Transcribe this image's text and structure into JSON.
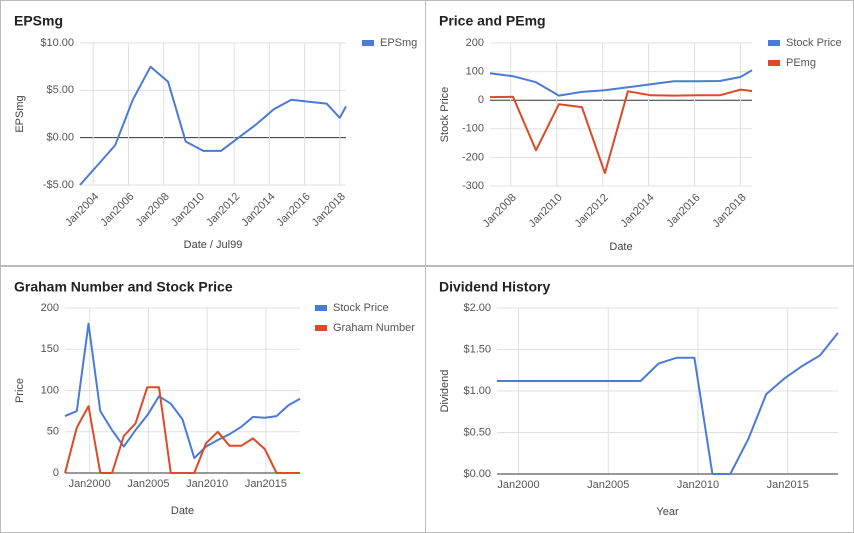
{
  "chart_data": [
    {
      "type": "line",
      "title": "EPSmg",
      "ylabel": "EPSmg",
      "xlabel": "Date / Jul99",
      "x": [
        2003.25,
        2004.25,
        2005.25,
        2006.25,
        2007.25,
        2008.25,
        2009.25,
        2010.25,
        2011.25,
        2012.25,
        2013.25,
        2014.25,
        2015.25,
        2016.25,
        2017.25,
        2018.0,
        2018.35
      ],
      "series": [
        {
          "name": "EPSmg",
          "color": "#4a7bd6",
          "values": [
            -5,
            -2.9,
            -0.8,
            4.0,
            7.5,
            5.9,
            -0.4,
            -1.4,
            -1.4,
            0.0,
            1.4,
            3.0,
            4.0,
            3.8,
            3.6,
            2.1,
            3.3
          ]
        }
      ],
      "xlim": [
        2003.25,
        2018.35
      ],
      "xticks": [
        {
          "value": 2004,
          "label": "Jan2004"
        },
        {
          "value": 2006,
          "label": "Jan2006"
        },
        {
          "value": 2008,
          "label": "Jan2008"
        },
        {
          "value": 2010,
          "label": "Jan2010"
        },
        {
          "value": 2012,
          "label": "Jan2012"
        },
        {
          "value": 2014,
          "label": "Jan2014"
        },
        {
          "value": 2016,
          "label": "Jan2016"
        },
        {
          "value": 2018,
          "label": "Jan2018"
        }
      ],
      "ylim": [
        -5,
        10
      ],
      "yticks": [
        {
          "value": 10,
          "label": "$10.00"
        },
        {
          "value": 5,
          "label": "$5.00"
        },
        {
          "value": 0,
          "label": "$0.00"
        },
        {
          "value": -5,
          "label": "-$5.00"
        }
      ],
      "grid": true,
      "legend": "right"
    },
    {
      "type": "line",
      "title": "Price and PEmg",
      "ylabel": "Stock Price",
      "xlabel": "Date",
      "x": [
        2007.1,
        2008.1,
        2009.1,
        2010.1,
        2011.1,
        2012.1,
        2013.1,
        2014.1,
        2015.1,
        2016.1,
        2017.1,
        2018.0,
        2018.5
      ],
      "series": [
        {
          "name": "Stock Price",
          "color": "#4a7bd6",
          "values": [
            94,
            84,
            63,
            16,
            29,
            35,
            45,
            56,
            66,
            66,
            67,
            81,
            105
          ]
        },
        {
          "name": "PEmg",
          "color": "#dc4a26",
          "values": [
            11,
            12,
            -175,
            -14,
            -24,
            -255,
            31,
            17,
            16,
            17,
            17,
            37,
            32
          ]
        }
      ],
      "xlim": [
        2007.1,
        2018.5
      ],
      "xticks": [
        {
          "value": 2008,
          "label": "Jan2008"
        },
        {
          "value": 2010,
          "label": "Jan2010"
        },
        {
          "value": 2012,
          "label": "Jan2012"
        },
        {
          "value": 2014,
          "label": "Jan2014"
        },
        {
          "value": 2016,
          "label": "Jan2016"
        },
        {
          "value": 2018,
          "label": "Jan2018"
        }
      ],
      "ylim": [
        -300,
        200
      ],
      "yticks": [
        200,
        100,
        0,
        -100,
        -200,
        -300
      ],
      "grid": true,
      "legend": "right"
    },
    {
      "type": "line",
      "title": "Graham Number and Stock Price",
      "ylabel": "Price",
      "xlabel": "Date",
      "x": [
        1997.9,
        1998.9,
        1999.9,
        2000.9,
        2001.9,
        2002.9,
        2003.9,
        2004.9,
        2005.9,
        2006.9,
        2007.9,
        2008.9,
        2009.9,
        2010.9,
        2011.9,
        2012.9,
        2013.9,
        2014.9,
        2015.9,
        2016.9,
        2017.9
      ],
      "series": [
        {
          "name": "Stock Price",
          "color": "#4a7bd6",
          "values": [
            69,
            75,
            181,
            75,
            52,
            32,
            52,
            70,
            93,
            84,
            65,
            18,
            32,
            40,
            47,
            56,
            68,
            67,
            69,
            82,
            90
          ]
        },
        {
          "name": "Graham Number",
          "color": "#dc4a26",
          "values": [
            0,
            55,
            81,
            0,
            0,
            45,
            60,
            104,
            104,
            0,
            0,
            0,
            36,
            50,
            33,
            33,
            42,
            29,
            0,
            0,
            0
          ]
        }
      ],
      "xlim": [
        1997.9,
        2017.9
      ],
      "xticks": [
        {
          "value": 2000,
          "label": "Jan2000"
        },
        {
          "value": 2005,
          "label": "Jan2005"
        },
        {
          "value": 2010,
          "label": "Jan2010"
        },
        {
          "value": 2015,
          "label": "Jan2015"
        }
      ],
      "ylim": [
        0,
        200
      ],
      "yticks": [
        200,
        150,
        100,
        50,
        0
      ],
      "grid": true,
      "legend": "right"
    },
    {
      "type": "line",
      "title": "Dividend History",
      "ylabel": "Dividend",
      "xlabel": "Year",
      "x": [
        1998.8,
        1999.8,
        2000.8,
        2001.8,
        2002.8,
        2003.8,
        2004.8,
        2005.8,
        2006.8,
        2007.8,
        2008.8,
        2009.8,
        2010.8,
        2011.8,
        2012.8,
        2013.8,
        2014.8,
        2015.8,
        2016.8,
        2017.8
      ],
      "series": [
        {
          "color": "#4a7bd6",
          "values": [
            1.12,
            1.12,
            1.12,
            1.12,
            1.12,
            1.12,
            1.12,
            1.12,
            1.12,
            1.33,
            1.4,
            1.4,
            0,
            0,
            0.42,
            0.96,
            1.15,
            1.3,
            1.43,
            1.7
          ]
        }
      ],
      "xlim": [
        1998.8,
        2017.8
      ],
      "xticks": [
        {
          "value": 2000,
          "label": "Jan2000"
        },
        {
          "value": 2005,
          "label": "Jan2005"
        },
        {
          "value": 2010,
          "label": "Jan2010"
        },
        {
          "value": 2015,
          "label": "Jan2015"
        }
      ],
      "ylim": [
        0,
        2
      ],
      "yticks": [
        {
          "value": 2,
          "label": "$2.00"
        },
        {
          "value": 1.5,
          "label": "$1.50"
        },
        {
          "value": 1,
          "label": "$1.00"
        },
        {
          "value": 0.5,
          "label": "$0.50"
        },
        {
          "value": 0,
          "label": "$0.00"
        }
      ],
      "grid": true
    }
  ]
}
